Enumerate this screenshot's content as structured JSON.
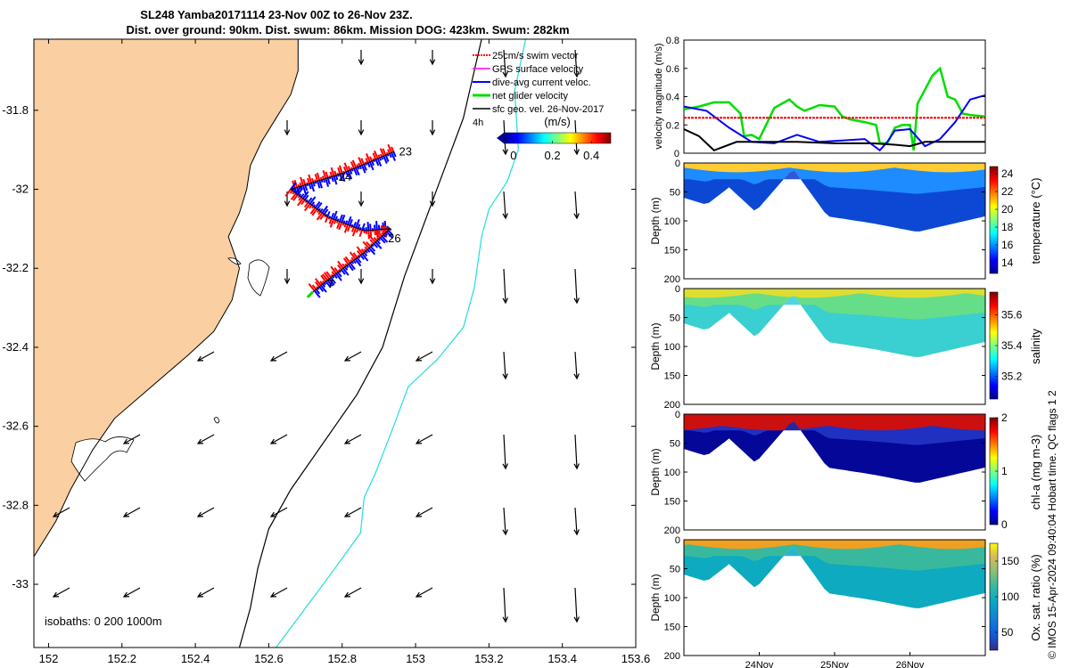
{
  "title_line1": "SL248 Yamba20171114 23-Nov 00Z to 26-Nov 23Z.",
  "title_line2": "Dist. over ground: 90km. Dist. swum: 86km. Mission DOG: 423km. Swum: 282km",
  "credit": "© IMOS 15-Apr-2024 09:40:04 Hobart time. QC flags 1  2",
  "colors": {
    "land": "#FACFA1",
    "swim_vector": "#FF0000",
    "gps_velocity": "#FF00FF",
    "dive_avg": "#0000FF",
    "net_glider": "#00DD00",
    "sfc_geo": "#000000",
    "isobath_200": "#000000",
    "isobath_1000": "#22DDDD"
  },
  "chart_data": [
    {
      "type": "map",
      "xlim": [
        151.96,
        153.6
      ],
      "ylim": [
        -33.16,
        -31.62
      ],
      "x_ticks": [
        152,
        152.2,
        152.4,
        152.6,
        152.8,
        153,
        153.2,
        153.4,
        153.6
      ],
      "x_tick_labels": [
        "152",
        "152.2",
        "152.4",
        "152.6",
        "152.8",
        "153",
        "153.2",
        "153.4",
        "153.6"
      ],
      "y_ticks": [
        -31.8,
        -32,
        -32.2,
        -32.4,
        -32.6,
        -32.8,
        -33
      ],
      "y_tick_labels": [
        "-31.8",
        "-32",
        "-32.2",
        "-32.4",
        "-32.6",
        "-32.8",
        "-33"
      ],
      "legend": {
        "placement": "top-right",
        "entries": [
          "25cm/s swim vector",
          "GPS surface velocity",
          "dive-avg current veloc.",
          "net glider velocity",
          "sfc geo. vel. 26-Nov-2017"
        ]
      },
      "colorbar": {
        "label": "(m/s)",
        "range": [
          -0.05,
          0.5
        ],
        "tick_values": [
          0,
          0.2,
          0.4
        ],
        "tick_labels": [
          "0",
          "0.2",
          "0.4"
        ],
        "tag": "4h"
      },
      "isobaths_text": "isobaths: 0   200  1000m",
      "glider_track": [
        {
          "lon": 152.94,
          "lat": -31.905
        },
        {
          "lon": 152.8,
          "lat": -31.96
        },
        {
          "lon": 152.66,
          "lat": -32.0
        },
        {
          "lon": 152.76,
          "lat": -32.07
        },
        {
          "lon": 152.86,
          "lat": -32.105
        },
        {
          "lon": 152.93,
          "lat": -32.1
        },
        {
          "lon": 152.86,
          "lat": -32.16
        },
        {
          "lon": 152.76,
          "lat": -32.23
        },
        {
          "lon": 152.72,
          "lat": -32.26
        }
      ],
      "track_labels": [
        {
          "text": "23",
          "lon": 152.955,
          "lat": -31.905
        },
        {
          "text": "24",
          "lon": 152.79,
          "lat": -31.97
        },
        {
          "text": "26",
          "lon": 152.925,
          "lat": -32.125
        },
        {
          "text": "7",
          "lon": 152.76,
          "lat": -32.24
        }
      ],
      "isobath_200": [
        {
          "lon": 153.18,
          "lat": -31.62
        },
        {
          "lon": 153.13,
          "lat": -31.82
        },
        {
          "lon": 153.05,
          "lat": -32.02
        },
        {
          "lon": 152.97,
          "lat": -32.22
        },
        {
          "lon": 152.91,
          "lat": -32.4
        },
        {
          "lon": 152.84,
          "lat": -32.52
        },
        {
          "lon": 152.75,
          "lat": -32.64
        },
        {
          "lon": 152.66,
          "lat": -32.76
        },
        {
          "lon": 152.6,
          "lat": -32.86
        },
        {
          "lon": 152.57,
          "lat": -32.96
        },
        {
          "lon": 152.55,
          "lat": -33.06
        },
        {
          "lon": 152.52,
          "lat": -33.16
        }
      ],
      "isobath_1000": [
        {
          "lon": 153.3,
          "lat": -31.62
        },
        {
          "lon": 153.27,
          "lat": -31.75
        },
        {
          "lon": 153.28,
          "lat": -31.9
        },
        {
          "lon": 153.25,
          "lat": -31.98
        },
        {
          "lon": 153.2,
          "lat": -32.05
        },
        {
          "lon": 153.18,
          "lat": -32.12
        },
        {
          "lon": 153.16,
          "lat": -32.25
        },
        {
          "lon": 153.13,
          "lat": -32.35
        },
        {
          "lon": 153.06,
          "lat": -32.43
        },
        {
          "lon": 152.98,
          "lat": -32.5
        },
        {
          "lon": 152.94,
          "lat": -32.6
        },
        {
          "lon": 152.89,
          "lat": -32.72
        },
        {
          "lon": 152.86,
          "lat": -32.78
        },
        {
          "lon": 152.85,
          "lat": -32.87
        },
        {
          "lon": 152.78,
          "lat": -32.96
        },
        {
          "lon": 152.7,
          "lat": -33.06
        },
        {
          "lon": 152.62,
          "lat": -33.16
        }
      ],
      "coastline": [
        {
          "lon": 152.68,
          "lat": -31.62
        },
        {
          "lon": 152.68,
          "lat": -31.7
        },
        {
          "lon": 152.66,
          "lat": -31.76
        },
        {
          "lon": 152.62,
          "lat": -31.82
        },
        {
          "lon": 152.58,
          "lat": -31.88
        },
        {
          "lon": 152.55,
          "lat": -31.94
        },
        {
          "lon": 152.54,
          "lat": -32.0
        },
        {
          "lon": 152.52,
          "lat": -32.06
        },
        {
          "lon": 152.49,
          "lat": -32.12
        },
        {
          "lon": 152.52,
          "lat": -32.2
        },
        {
          "lon": 152.5,
          "lat": -32.28
        },
        {
          "lon": 152.45,
          "lat": -32.36
        },
        {
          "lon": 152.38,
          "lat": -32.42
        },
        {
          "lon": 152.28,
          "lat": -32.5
        },
        {
          "lon": 152.18,
          "lat": -32.58
        },
        {
          "lon": 152.12,
          "lat": -32.66
        },
        {
          "lon": 152.06,
          "lat": -32.76
        },
        {
          "lon": 152.02,
          "lat": -32.84
        },
        {
          "lon": 151.96,
          "lat": -32.93
        }
      ]
    },
    {
      "type": "line",
      "xlim": [
        0,
        4
      ],
      "ylim": [
        0,
        0.8
      ],
      "ylabel": "velocity magnitude (m/s)",
      "y_ticks": [
        0,
        0.2,
        0.4,
        0.6,
        0.8
      ],
      "y_tick_labels": [
        "0",
        "0.2",
        "0.4",
        "0.6",
        "0.8"
      ],
      "series": [
        {
          "color": "#00DD00",
          "x": [
            0,
            0.2,
            0.4,
            0.6,
            0.75,
            0.8,
            0.9,
            1.0,
            1.2,
            1.4,
            1.5,
            1.6,
            1.8,
            2.0,
            2.1,
            2.2,
            2.4,
            2.55,
            2.6,
            2.7,
            2.8,
            2.9,
            3.0,
            3.05,
            3.1,
            3.2,
            3.3,
            3.4,
            3.5,
            3.6,
            3.7,
            3.8,
            4.0
          ],
          "y": [
            0.31,
            0.33,
            0.36,
            0.36,
            0.28,
            0.12,
            0.13,
            0.1,
            0.32,
            0.38,
            0.33,
            0.3,
            0.34,
            0.33,
            0.26,
            0.24,
            0.22,
            0.2,
            0.07,
            0.07,
            0.18,
            0.2,
            0.2,
            0.02,
            0.35,
            0.45,
            0.55,
            0.6,
            0.4,
            0.38,
            0.28,
            0.27,
            0.26
          ]
        },
        {
          "color": "#0000FF",
          "x": [
            0,
            0.3,
            0.6,
            0.9,
            1.2,
            1.5,
            1.8,
            2.1,
            2.4,
            2.6,
            2.7,
            2.8,
            3.0,
            3.2,
            3.4,
            3.6,
            3.8,
            4.0
          ],
          "y": [
            0.33,
            0.3,
            0.18,
            0.08,
            0.07,
            0.13,
            0.08,
            0.09,
            0.1,
            0.02,
            0.08,
            0.16,
            0.17,
            0.05,
            0.1,
            0.22,
            0.38,
            0.41
          ]
        },
        {
          "color": "#000000",
          "x": [
            0,
            0.2,
            0.4,
            0.7,
            1.0,
            1.5,
            2.0,
            2.5,
            2.8,
            3.0,
            3.2,
            3.5,
            4.0
          ],
          "y": [
            0.17,
            0.12,
            0.02,
            0.08,
            0.08,
            0.08,
            0.07,
            0.07,
            0.06,
            0.05,
            0.08,
            0.08,
            0.08
          ]
        },
        {
          "color": "#FF0000",
          "x": [
            0,
            4
          ],
          "y": [
            0.25,
            0.25
          ]
        }
      ]
    },
    {
      "type": "heatmap",
      "name": "temperature",
      "ylabel": "Depth (m)",
      "ylim": [
        200,
        0
      ],
      "y_ticks": [
        0,
        50,
        100,
        150,
        200
      ],
      "y_tick_labels": [
        "0",
        "50",
        "100",
        "150",
        "200"
      ],
      "colorbar_label": "temperature (°C)",
      "colorbar_range": [
        12.8,
        24.8
      ],
      "colorbar_ticks": [
        14,
        16,
        18,
        20,
        22,
        24
      ],
      "colorbar_tick_labels": [
        "14",
        "16",
        "18",
        "20",
        "22",
        "24"
      ]
    },
    {
      "type": "heatmap",
      "name": "salinity",
      "ylabel": "Depth (m)",
      "ylim": [
        200,
        0
      ],
      "y_ticks": [
        0,
        50,
        100,
        150,
        200
      ],
      "y_tick_labels": [
        "0",
        "50",
        "100",
        "150",
        "200"
      ],
      "colorbar_label": "salinity",
      "colorbar_range": [
        35.05,
        35.75
      ],
      "colorbar_ticks": [
        35.2,
        35.4,
        35.6
      ],
      "colorbar_tick_labels": [
        "35.2",
        "35.4",
        "35.6"
      ]
    },
    {
      "type": "heatmap",
      "name": "chl-a",
      "ylabel": "Depth (m)",
      "ylim": [
        200,
        0
      ],
      "y_ticks": [
        0,
        50,
        100,
        150,
        200
      ],
      "y_tick_labels": [
        "0",
        "50",
        "100",
        "150",
        "200"
      ],
      "colorbar_label": "chl-a (mg m-3)",
      "colorbar_range": [
        0,
        2
      ],
      "colorbar_ticks": [
        0,
        1,
        2
      ],
      "colorbar_tick_labels": [
        "0",
        "1",
        "2"
      ]
    },
    {
      "type": "heatmap",
      "name": "oxygen",
      "ylabel": "Depth (m)",
      "ylim": [
        200,
        0
      ],
      "y_ticks": [
        0,
        50,
        100,
        150,
        200
      ],
      "y_tick_labels": [
        "0",
        "50",
        "100",
        "150",
        "200"
      ],
      "colorbar_label": "Ox. sat. ratio (%)",
      "colorbar_range": [
        25,
        175
      ],
      "colorbar_ticks": [
        50,
        100,
        150
      ],
      "colorbar_tick_labels": [
        "50",
        "100",
        "150"
      ],
      "x_ticks": [
        1,
        2,
        3
      ],
      "x_tick_labels": [
        "24Nov",
        "25Nov",
        "26Nov"
      ]
    }
  ]
}
